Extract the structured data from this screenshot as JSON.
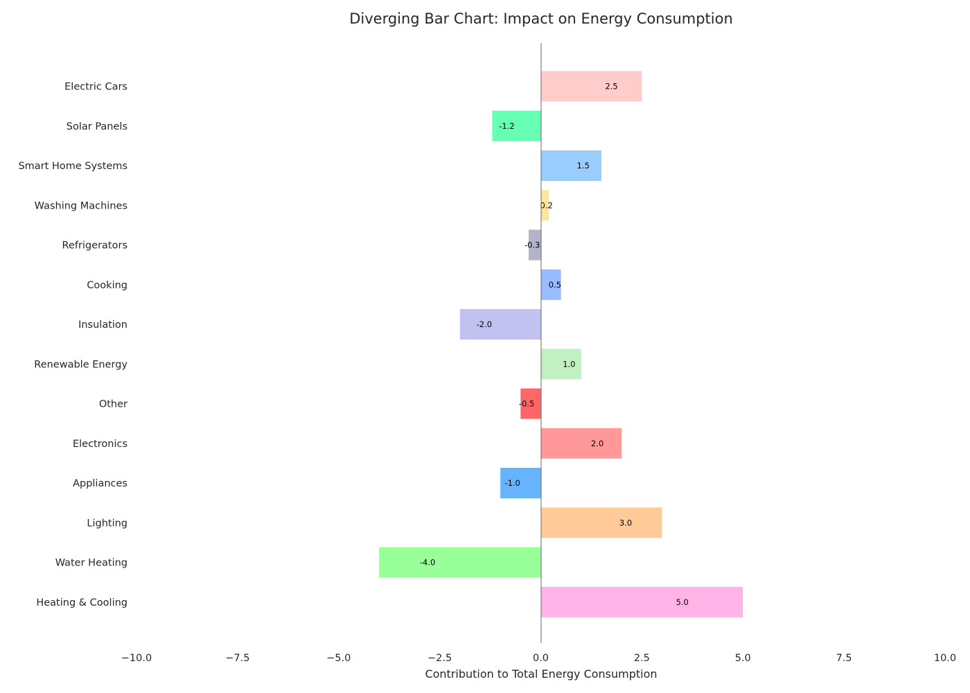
{
  "chart_data": {
    "type": "bar",
    "orientation": "horizontal",
    "title": "Diverging Bar Chart: Impact on Energy Consumption",
    "xlabel": "Contribution to Total Energy Consumption",
    "ylabel": "",
    "xlim": [
      -10,
      10
    ],
    "xticks": [
      "−10.0",
      "−7.5",
      "−5.0",
      "−2.5",
      "0.0",
      "2.5",
      "5.0",
      "7.5",
      "10.0"
    ],
    "xtick_values": [
      -10,
      -7.5,
      -5,
      -2.5,
      0,
      2.5,
      5,
      7.5,
      10
    ],
    "grid": false,
    "categories": [
      "Electric Cars",
      "Solar Panels",
      "Smart Home Systems",
      "Washing Machines",
      "Refrigerators",
      "Cooking",
      "Insulation",
      "Renewable Energy",
      "Other",
      "Electronics",
      "Appliances",
      "Lighting",
      "Water Heating",
      "Heating & Cooling"
    ],
    "values": [
      2.5,
      -1.2,
      1.5,
      0.2,
      -0.3,
      0.5,
      -2.0,
      1.0,
      -0.5,
      2.0,
      -1.0,
      3.0,
      -4.0,
      5.0
    ],
    "labels": [
      "2.5",
      "-1.2",
      "1.5",
      "0.2",
      "-0.3",
      "0.5",
      "-2.0",
      "1.0",
      "-0.5",
      "2.0",
      "-1.0",
      "3.0",
      "-4.0",
      "5.0"
    ],
    "colors": [
      "#ffcccc",
      "#66ffb3",
      "#99ccff",
      "#ffe699",
      "#b3b3cc",
      "#99bbff",
      "#c2c2f0",
      "#c2f0c2",
      "#ff6666",
      "#ff9999",
      "#66b3ff",
      "#ffcc99",
      "#99ff99",
      "#ffb3e6"
    ]
  }
}
